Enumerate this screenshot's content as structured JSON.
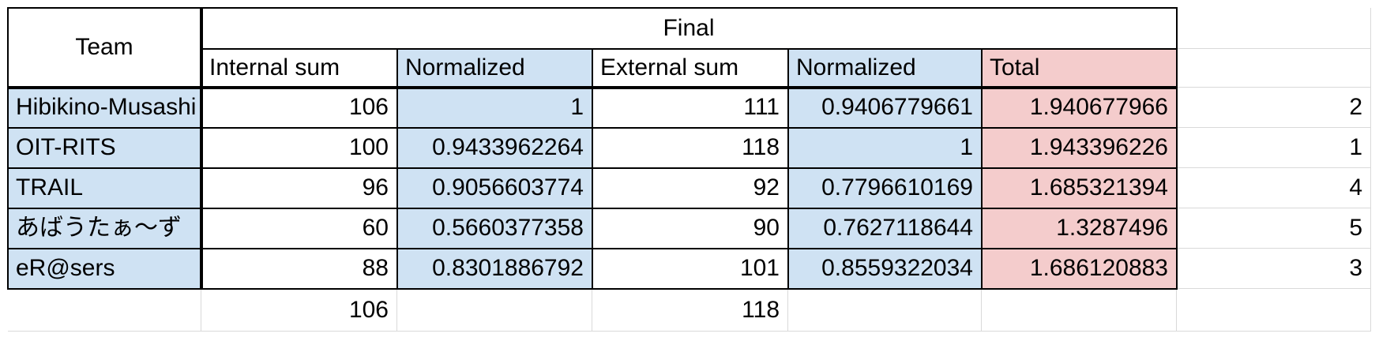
{
  "header": {
    "team": "Team",
    "final": "Final",
    "columns": [
      "Internal sum",
      "Normalized",
      "External sum",
      "Normalized",
      "Total"
    ]
  },
  "rows": [
    {
      "team": "Hibikino-Musashi",
      "internal_sum": "106",
      "internal_norm": "1",
      "external_sum": "111",
      "external_norm": "0.9406779661",
      "total": "1.940677966",
      "rank": "2"
    },
    {
      "team": "OIT-RITS",
      "internal_sum": "100",
      "internal_norm": "0.9433962264",
      "external_sum": "118",
      "external_norm": "1",
      "total": "1.943396226",
      "rank": "1"
    },
    {
      "team": "TRAIL",
      "internal_sum": "96",
      "internal_norm": "0.9056603774",
      "external_sum": "92",
      "external_norm": "0.7796610169",
      "total": "1.685321394",
      "rank": "4"
    },
    {
      "team": "あばうたぁ〜ず",
      "internal_sum": "60",
      "internal_norm": "0.5660377358",
      "external_sum": "90",
      "external_norm": "0.7627118644",
      "total": "1.3287496",
      "rank": "5"
    },
    {
      "team": "eR@sers",
      "internal_sum": "88",
      "internal_norm": "0.8301886792",
      "external_sum": "101",
      "external_norm": "0.8559322034",
      "total": "1.686120883",
      "rank": "3"
    }
  ],
  "footer": {
    "internal_max": "106",
    "external_max": "118"
  },
  "colors": {
    "blue_fill": "#cfe2f3",
    "pink_fill": "#f4cccc",
    "grid": "#d9d9d9",
    "border": "#000000"
  }
}
